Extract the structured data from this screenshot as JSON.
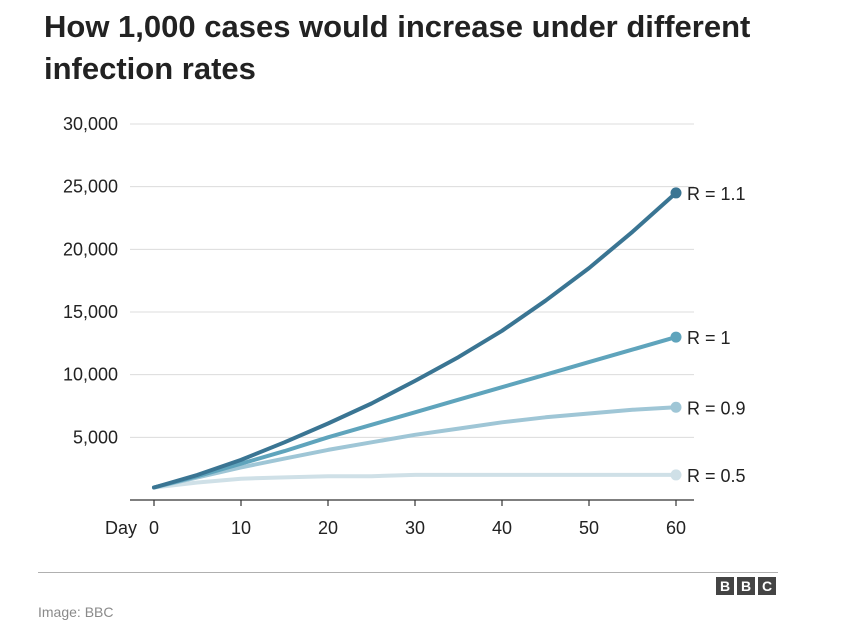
{
  "chart_data": {
    "type": "line",
    "title": "How 1,000 cases would increase under different infection rates",
    "xlabel": "Day",
    "ylabel": "",
    "xlim": [
      0,
      60
    ],
    "ylim": [
      0,
      30000
    ],
    "x_ticks": [
      0,
      10,
      20,
      30,
      40,
      50,
      60
    ],
    "x_tick_labels": [
      "0",
      "10",
      "20",
      "30",
      "40",
      "50",
      "60"
    ],
    "y_ticks": [
      5000,
      10000,
      15000,
      20000,
      25000,
      30000
    ],
    "y_tick_labels": [
      "5,000",
      "10,000",
      "15,000",
      "20,000",
      "25,000",
      "30,000"
    ],
    "grid": true,
    "x": [
      0,
      5,
      10,
      15,
      20,
      25,
      30,
      35,
      40,
      45,
      50,
      55,
      60
    ],
    "series": [
      {
        "name": "R = 1.1",
        "label": "R = 1.1",
        "color": "#3a7593",
        "values": [
          1000,
          2000,
          3200,
          4600,
          6100,
          7700,
          9500,
          11400,
          13500,
          15900,
          18500,
          21400,
          24500
        ]
      },
      {
        "name": "R = 1",
        "label": "R = 1",
        "color": "#5fa4bc",
        "values": [
          1000,
          1900,
          2900,
          3900,
          5000,
          6000,
          7000,
          8000,
          9000,
          10000,
          11000,
          12000,
          13000
        ]
      },
      {
        "name": "R = 0.9",
        "label": "R = 0.9",
        "color": "#9fc6d6",
        "values": [
          1000,
          1800,
          2600,
          3300,
          4000,
          4600,
          5200,
          5700,
          6200,
          6600,
          6900,
          7200,
          7400
        ]
      },
      {
        "name": "R = 0.5",
        "label": "R = 0.5",
        "color": "#cfe0e7",
        "values": [
          1000,
          1400,
          1700,
          1800,
          1900,
          1900,
          2000,
          2000,
          2000,
          2000,
          2000,
          2000,
          2000
        ]
      }
    ]
  },
  "footer": {
    "logo_letters": [
      "B",
      "B",
      "C"
    ],
    "credit": "Image: BBC"
  }
}
